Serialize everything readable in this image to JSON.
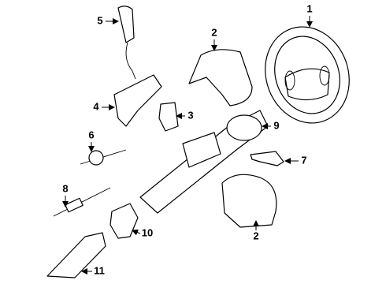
{
  "callouts": [
    {
      "label": "1"
    },
    {
      "label": "2"
    },
    {
      "label": "5"
    },
    {
      "label": "4"
    },
    {
      "label": "3"
    },
    {
      "label": "6"
    },
    {
      "label": "9"
    },
    {
      "label": "7"
    },
    {
      "label": "8"
    },
    {
      "label": "2"
    },
    {
      "label": "10"
    },
    {
      "label": "11"
    }
  ]
}
